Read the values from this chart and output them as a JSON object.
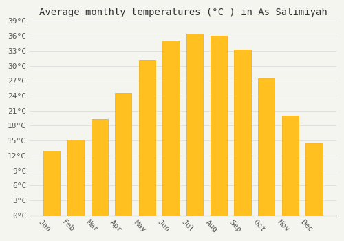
{
  "title": "Average monthly temperatures (°C ) in Às Sä limÄ¬yah",
  "title_display": "Average monthly temperatures (°C ) in As Sālimīyah",
  "months": [
    "Jan",
    "Feb",
    "Mar",
    "Apr",
    "May",
    "Jun",
    "Jul",
    "Aug",
    "Sep",
    "Oct",
    "Nov",
    "Dec"
  ],
  "values": [
    13.0,
    15.2,
    19.3,
    24.5,
    31.2,
    35.0,
    36.5,
    36.0,
    33.2,
    27.5,
    20.0,
    14.5
  ],
  "bar_color_face": "#FFC020",
  "bar_color_edge": "#F5A800",
  "background_color": "#F5F5F0",
  "plot_bg_color": "#F5F5F0",
  "grid_color": "#DDDDDD",
  "ylim": [
    0,
    39
  ],
  "yticks": [
    0,
    3,
    6,
    9,
    12,
    15,
    18,
    21,
    24,
    27,
    30,
    33,
    36,
    39
  ],
  "ytick_labels": [
    "0°C",
    "3°C",
    "6°C",
    "9°C",
    "12°C",
    "15°C",
    "18°C",
    "21°C",
    "24°C",
    "27°C",
    "30°C",
    "33°C",
    "36°C",
    "39°C"
  ],
  "title_fontsize": 10,
  "tick_fontsize": 8,
  "bar_width": 0.7,
  "xlabel_rotation": -45
}
